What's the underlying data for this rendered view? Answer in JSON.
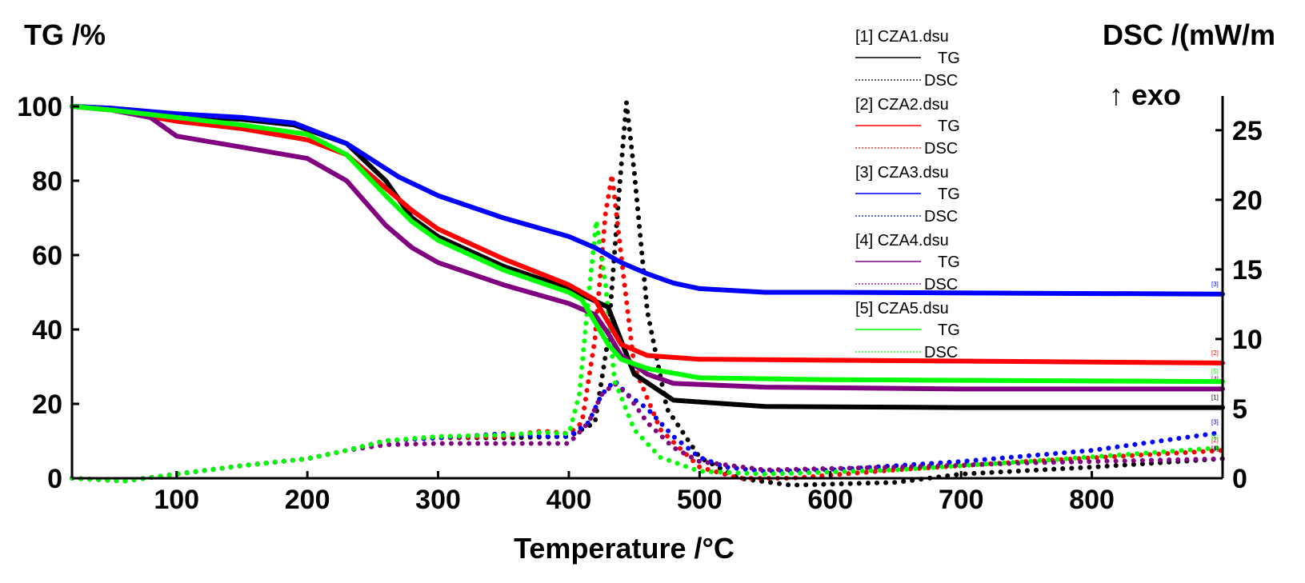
{
  "chart_data": {
    "type": "line",
    "ylabel_left": "TG /%",
    "ylabel_right": "DSC /(mW/m",
    "exo_label": "↑ exo",
    "xlabel": "Temperature /°C",
    "xlim": [
      20,
      900
    ],
    "ylim_left": [
      0,
      100
    ],
    "ylim_right": [
      0,
      27
    ],
    "x_ticks": [
      100,
      200,
      300,
      400,
      500,
      600,
      700,
      800
    ],
    "y_left_ticks": [
      0,
      20,
      40,
      60,
      80,
      100
    ],
    "y_right_ticks": [
      0,
      5,
      10,
      15,
      20,
      25
    ],
    "legend_placement": "top-center",
    "datasets": [
      {
        "file": "[1] CZA1.dsu",
        "color": "#000000",
        "tg_label": "TG",
        "dsc_label": "DSC",
        "marker": "[1]",
        "tg": [
          [
            20,
            100
          ],
          [
            50,
            99.5
          ],
          [
            100,
            97.5
          ],
          [
            150,
            96.5
          ],
          [
            190,
            95
          ],
          [
            230,
            90
          ],
          [
            260,
            80
          ],
          [
            280,
            70
          ],
          [
            300,
            65
          ],
          [
            350,
            57
          ],
          [
            400,
            51
          ],
          [
            430,
            46
          ],
          [
            450,
            28
          ],
          [
            480,
            21
          ],
          [
            550,
            19.3
          ],
          [
            700,
            19
          ],
          [
            900,
            19
          ]
        ],
        "dsc": [
          [
            20,
            0
          ],
          [
            60,
            -0.2
          ],
          [
            100,
            0.3
          ],
          [
            150,
            0.9
          ],
          [
            200,
            1.4
          ],
          [
            230,
            2
          ],
          [
            260,
            2.7
          ],
          [
            300,
            2.9
          ],
          [
            350,
            2.9
          ],
          [
            400,
            3
          ],
          [
            420,
            4
          ],
          [
            430,
            10
          ],
          [
            438,
            20
          ],
          [
            444,
            27
          ],
          [
            450,
            22
          ],
          [
            460,
            12
          ],
          [
            475,
            5
          ],
          [
            500,
            1.5
          ],
          [
            530,
            0
          ],
          [
            570,
            -0.5
          ],
          [
            650,
            -0.3
          ],
          [
            700,
            0.3
          ],
          [
            800,
            0.8
          ],
          [
            900,
            1.4
          ]
        ]
      },
      {
        "file": "[2] CZA2.dsu",
        "color": "#ff0000",
        "tg_label": "TG",
        "dsc_label": "DSC",
        "marker": "[2]",
        "tg": [
          [
            20,
            100
          ],
          [
            50,
            99
          ],
          [
            100,
            96
          ],
          [
            150,
            94
          ],
          [
            200,
            91
          ],
          [
            230,
            87
          ],
          [
            260,
            78
          ],
          [
            280,
            72
          ],
          [
            300,
            67
          ],
          [
            350,
            59
          ],
          [
            400,
            52
          ],
          [
            420,
            48
          ],
          [
            430,
            42
          ],
          [
            440,
            36
          ],
          [
            460,
            33
          ],
          [
            500,
            32
          ],
          [
            700,
            31.5
          ],
          [
            900,
            31
          ]
        ],
        "dsc": [
          [
            20,
            0
          ],
          [
            60,
            -0.2
          ],
          [
            100,
            0.3
          ],
          [
            150,
            0.9
          ],
          [
            200,
            1.4
          ],
          [
            230,
            2
          ],
          [
            260,
            2.7
          ],
          [
            300,
            2.9
          ],
          [
            350,
            3
          ],
          [
            380,
            3.4
          ],
          [
            400,
            3.2
          ],
          [
            410,
            4
          ],
          [
            420,
            10
          ],
          [
            428,
            19
          ],
          [
            433,
            21.8
          ],
          [
            440,
            16
          ],
          [
            450,
            8
          ],
          [
            470,
            3.5
          ],
          [
            500,
            0.8
          ],
          [
            530,
            0
          ],
          [
            570,
            0
          ],
          [
            650,
            0.6
          ],
          [
            750,
            1.2
          ],
          [
            900,
            2
          ]
        ]
      },
      {
        "file": "[3] CZA3.dsu",
        "color": "#0000ff",
        "tg_label": "TG",
        "dsc_label": "DSC",
        "marker": "[3]",
        "tg": [
          [
            20,
            100
          ],
          [
            50,
            99.5
          ],
          [
            100,
            98
          ],
          [
            150,
            97
          ],
          [
            190,
            95.5
          ],
          [
            230,
            90
          ],
          [
            270,
            81
          ],
          [
            300,
            76
          ],
          [
            350,
            70
          ],
          [
            400,
            65
          ],
          [
            420,
            62
          ],
          [
            440,
            58
          ],
          [
            460,
            55
          ],
          [
            480,
            52.5
          ],
          [
            500,
            51
          ],
          [
            550,
            50
          ],
          [
            600,
            50
          ],
          [
            900,
            49.5
          ]
        ],
        "dsc": [
          [
            20,
            0
          ],
          [
            60,
            -0.2
          ],
          [
            100,
            0.3
          ],
          [
            150,
            0.9
          ],
          [
            200,
            1.4
          ],
          [
            230,
            2
          ],
          [
            260,
            2.7
          ],
          [
            300,
            2.9
          ],
          [
            350,
            3.2
          ],
          [
            380,
            3
          ],
          [
            400,
            3
          ],
          [
            415,
            4
          ],
          [
            425,
            6
          ],
          [
            435,
            7
          ],
          [
            445,
            6
          ],
          [
            460,
            5
          ],
          [
            480,
            3
          ],
          [
            500,
            1.5
          ],
          [
            520,
            0.8
          ],
          [
            550,
            0.5
          ],
          [
            600,
            0.6
          ],
          [
            700,
            1.2
          ],
          [
            800,
            2
          ],
          [
            900,
            3.3
          ]
        ]
      },
      {
        "file": "[4] CZA4.dsu",
        "color": "#800080",
        "tg_label": "TG",
        "dsc_label": "DSC",
        "marker": "[4]",
        "tg": [
          [
            20,
            100
          ],
          [
            50,
            99
          ],
          [
            80,
            97
          ],
          [
            100,
            92
          ],
          [
            150,
            89
          ],
          [
            200,
            86
          ],
          [
            230,
            80
          ],
          [
            260,
            68
          ],
          [
            280,
            62
          ],
          [
            300,
            58
          ],
          [
            350,
            52
          ],
          [
            400,
            47
          ],
          [
            420,
            44
          ],
          [
            430,
            39
          ],
          [
            440,
            33
          ],
          [
            460,
            28
          ],
          [
            480,
            25.5
          ],
          [
            550,
            24.5
          ],
          [
            700,
            24
          ],
          [
            900,
            24
          ]
        ],
        "dsc": [
          [
            20,
            0
          ],
          [
            60,
            -0.2
          ],
          [
            100,
            0.3
          ],
          [
            150,
            0.9
          ],
          [
            200,
            1.4
          ],
          [
            230,
            2
          ],
          [
            260,
            2.4
          ],
          [
            300,
            2.5
          ],
          [
            350,
            2.5
          ],
          [
            400,
            2.5
          ],
          [
            415,
            4
          ],
          [
            425,
            6
          ],
          [
            435,
            6.8
          ],
          [
            445,
            6
          ],
          [
            460,
            4
          ],
          [
            480,
            2.2
          ],
          [
            500,
            1.2
          ],
          [
            550,
            0.6
          ],
          [
            650,
            0.8
          ],
          [
            750,
            1.1
          ],
          [
            900,
            1.4
          ]
        ]
      },
      {
        "file": "[5] CZA5.dsu",
        "color": "#00ff00",
        "tg_label": "TG",
        "dsc_label": "DSC",
        "marker": "[5]",
        "tg": [
          [
            20,
            100
          ],
          [
            50,
            99
          ],
          [
            100,
            97
          ],
          [
            150,
            95
          ],
          [
            200,
            92.5
          ],
          [
            230,
            87
          ],
          [
            260,
            76
          ],
          [
            280,
            69
          ],
          [
            300,
            64
          ],
          [
            350,
            56
          ],
          [
            400,
            50
          ],
          [
            410,
            48
          ],
          [
            420,
            42
          ],
          [
            430,
            36
          ],
          [
            440,
            32
          ],
          [
            460,
            29.5
          ],
          [
            500,
            27
          ],
          [
            600,
            26.5
          ],
          [
            900,
            26
          ]
        ],
        "dsc": [
          [
            20,
            0
          ],
          [
            60,
            -0.2
          ],
          [
            100,
            0.3
          ],
          [
            150,
            0.9
          ],
          [
            200,
            1.4
          ],
          [
            230,
            2
          ],
          [
            260,
            2.7
          ],
          [
            300,
            3
          ],
          [
            350,
            3.1
          ],
          [
            380,
            3.3
          ],
          [
            400,
            3.2
          ],
          [
            408,
            6
          ],
          [
            415,
            13
          ],
          [
            421,
            18.5
          ],
          [
            428,
            14
          ],
          [
            435,
            7
          ],
          [
            450,
            3.5
          ],
          [
            470,
            1.5
          ],
          [
            500,
            0.5
          ],
          [
            550,
            0.3
          ],
          [
            650,
            0.6
          ],
          [
            750,
            1.2
          ],
          [
            900,
            2.2
          ]
        ]
      }
    ]
  }
}
